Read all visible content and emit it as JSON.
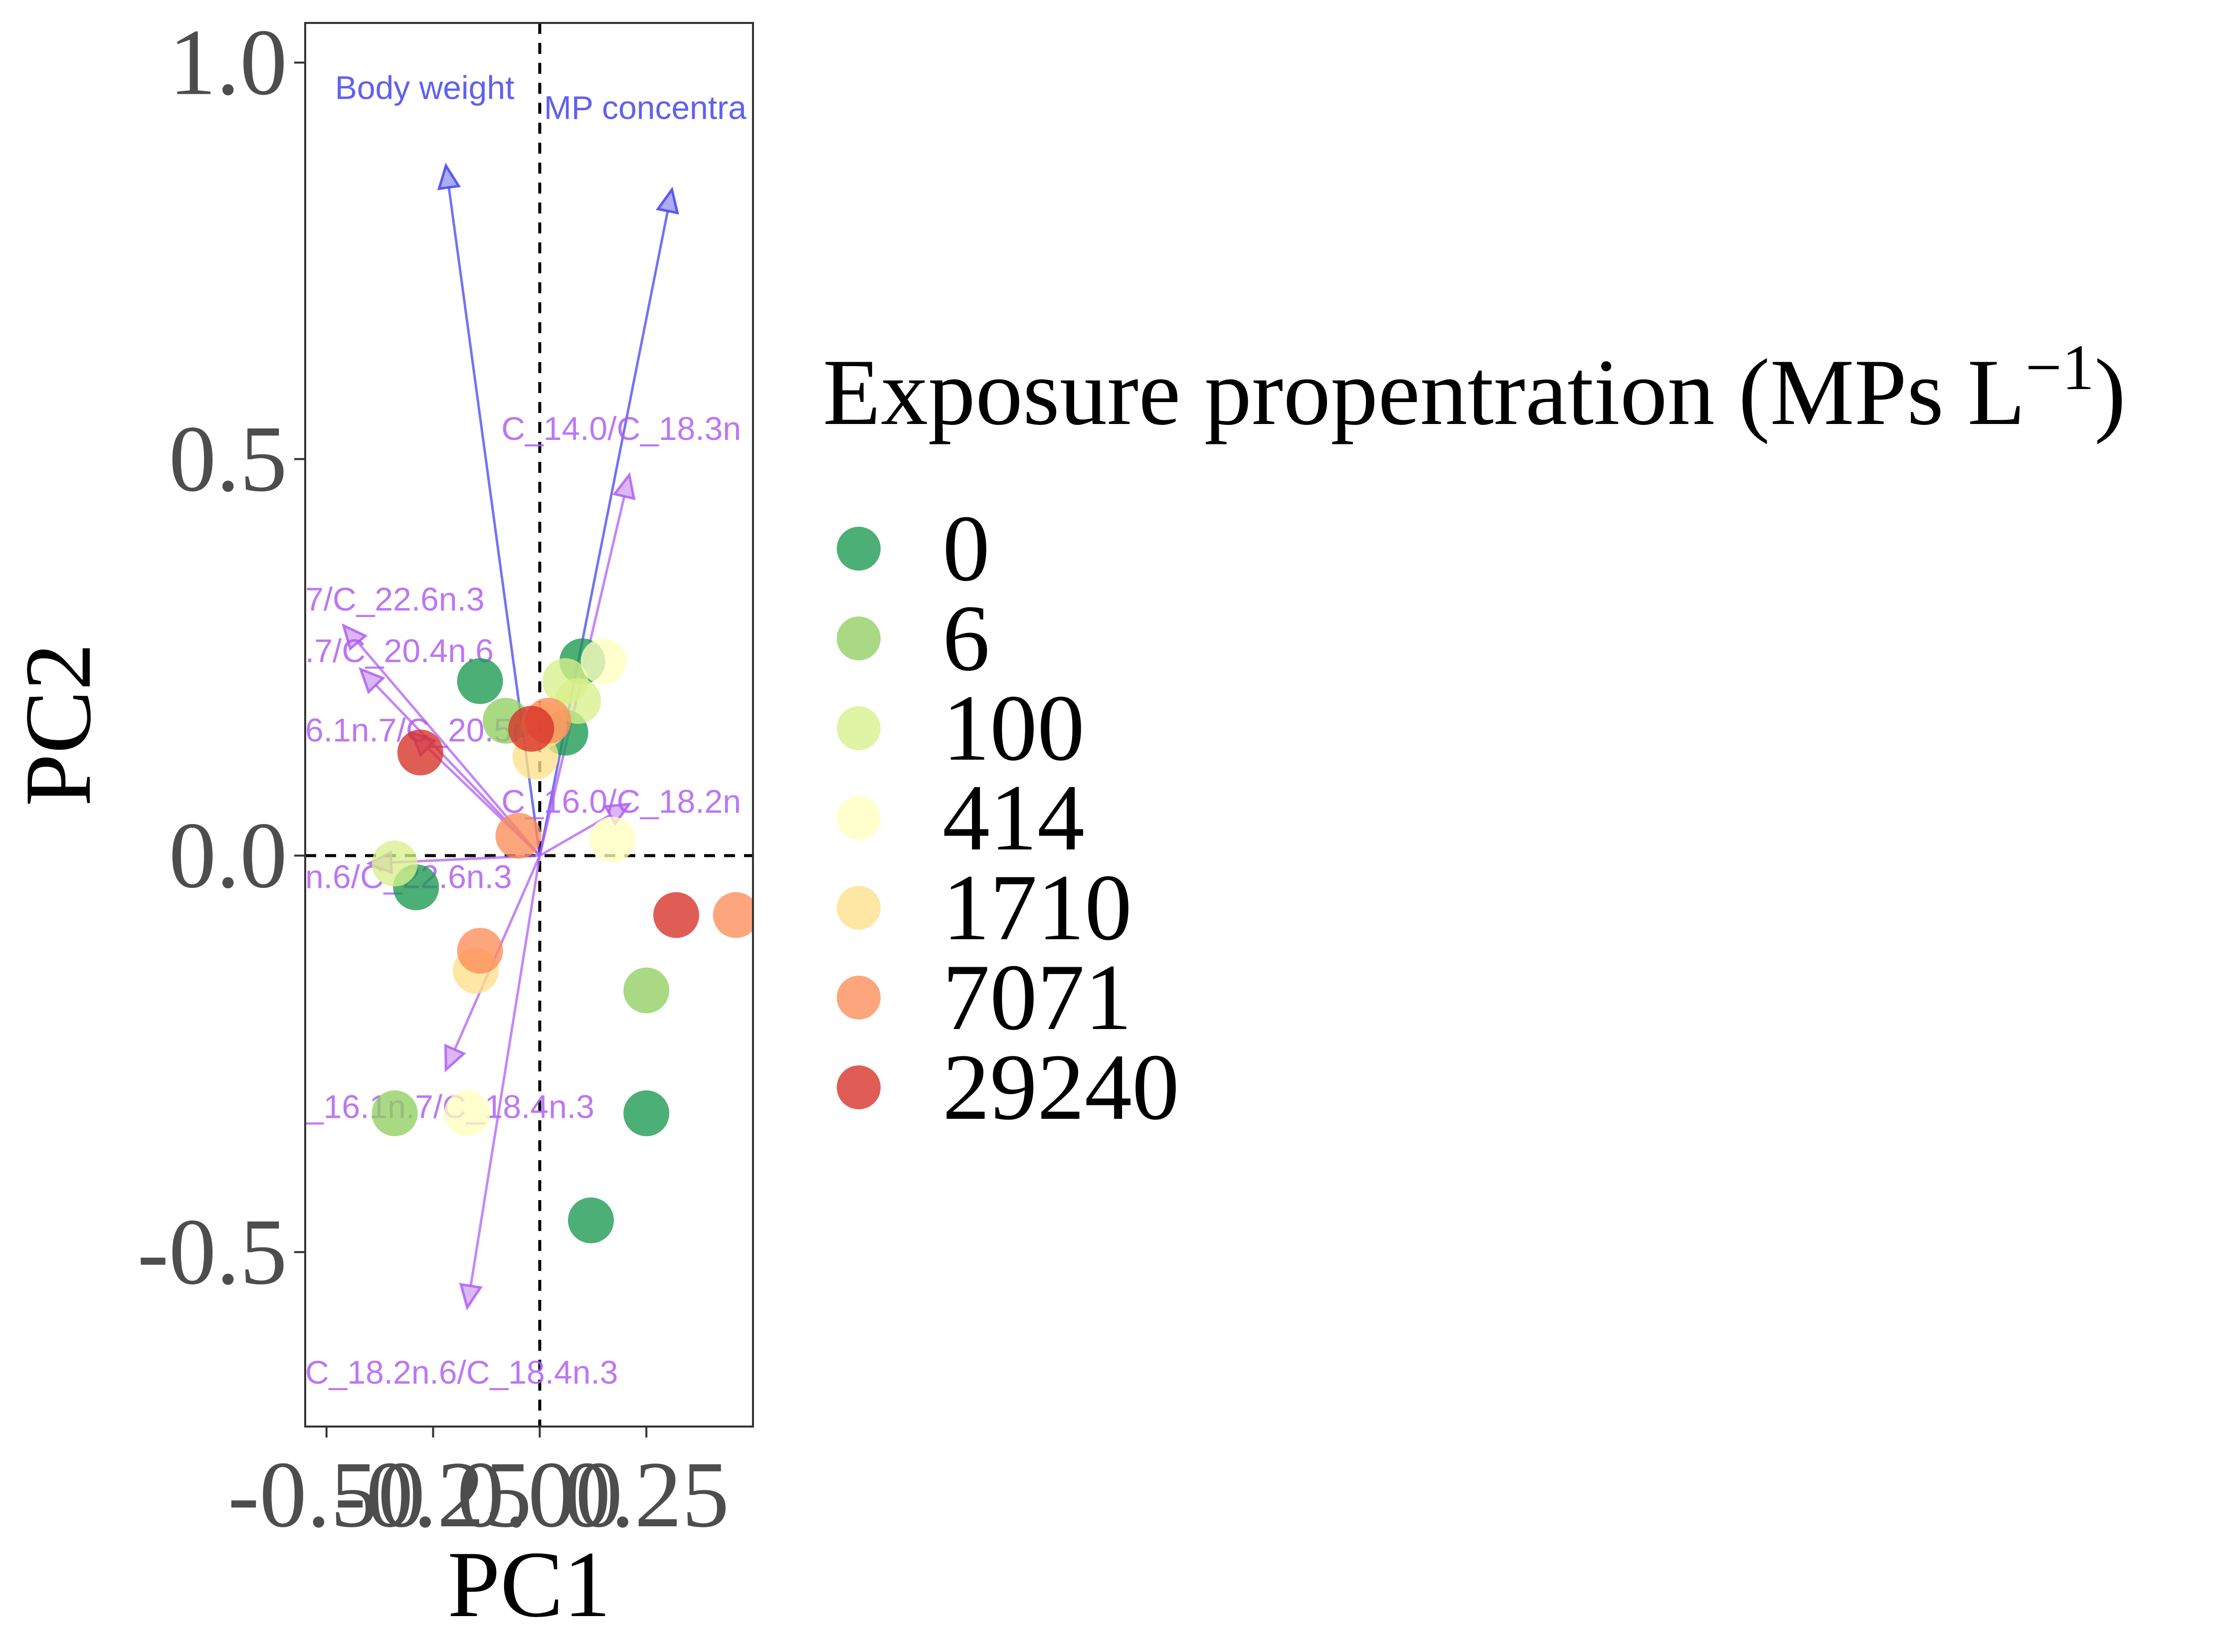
{
  "chart_data": {
    "type": "scatter",
    "xlabel": "PC1",
    "ylabel": "PC2",
    "xlim": [
      -0.55,
      0.5
    ],
    "ylim": [
      -0.72,
      1.05
    ],
    "x_ticks": [
      -0.5,
      -0.25,
      0.0,
      0.25
    ],
    "x_tick_labels": [
      "-0.50",
      "-0.25",
      "0.00",
      "0.25"
    ],
    "y_ticks": [
      -0.5,
      0.0,
      0.5,
      1.0
    ],
    "y_tick_labels": [
      "-0.5",
      "0.0",
      "0.5",
      "1.0"
    ],
    "reference_lines": {
      "x": 0,
      "y": 0,
      "style": "dashed",
      "color": "#000000"
    },
    "legend": {
      "title": "Exposure propentration (MPs L",
      "title_superscript": "−1",
      "title_suffix": ")",
      "placement": "right"
    },
    "series": [
      {
        "name": "0",
        "color": "#1a9850",
        "points": [
          [
            -0.14,
            0.22
          ],
          [
            0.1,
            0.245
          ],
          [
            0.06,
            0.155
          ],
          [
            -0.29,
            -0.04
          ],
          [
            0.25,
            -0.325
          ],
          [
            0.12,
            -0.46
          ]
        ]
      },
      {
        "name": "6",
        "color": "#91cf60",
        "points": [
          [
            -0.08,
            0.17
          ],
          [
            0.25,
            -0.17
          ],
          [
            -0.34,
            -0.325
          ]
        ]
      },
      {
        "name": "100",
        "color": "#d9ef8b",
        "points": [
          [
            0.06,
            0.22
          ],
          [
            0.09,
            0.195
          ],
          [
            -0.34,
            -0.01
          ]
        ]
      },
      {
        "name": "414",
        "color": "#ffffbf",
        "points": [
          [
            0.15,
            0.245
          ],
          [
            0.17,
            0.02
          ],
          [
            -0.17,
            -0.325
          ]
        ]
      },
      {
        "name": "1710",
        "color": "#fee08b",
        "points": [
          [
            0.01,
            0.165
          ],
          [
            -0.01,
            0.125
          ],
          [
            -0.15,
            -0.145
          ]
        ]
      },
      {
        "name": "7071",
        "color": "#fc8d59",
        "points": [
          [
            0.02,
            0.17
          ],
          [
            -0.05,
            0.025
          ],
          [
            -0.14,
            -0.12
          ],
          [
            0.46,
            -0.075
          ]
        ]
      },
      {
        "name": "29240",
        "color": "#d73027",
        "points": [
          [
            -0.28,
            0.13
          ],
          [
            -0.02,
            0.16
          ],
          [
            0.32,
            -0.075
          ]
        ]
      }
    ],
    "vectors": [
      {
        "label": "Body weight",
        "color": "#4444ee",
        "x": -0.22,
        "y": 0.87,
        "label_x": -0.48,
        "label_y": 0.965
      },
      {
        "label": "MP concentra",
        "color": "#4444ee",
        "x": 0.31,
        "y": 0.84,
        "label_x": 0.01,
        "label_y": 0.94
      },
      {
        "label": "C_14.0/C_18.3n",
        "color": "#b05ff0",
        "x": 0.21,
        "y": 0.48,
        "label_x": -0.09,
        "label_y": 0.535
      },
      {
        "label": "7/C_22.6n.3",
        "color": "#b05ff0",
        "x": -0.46,
        "y": 0.29,
        "label_x": -0.55,
        "label_y": 0.32
      },
      {
        "label": ".7/C_20.4n.6",
        "color": "#b05ff0",
        "x": -0.42,
        "y": 0.235,
        "label_x": -0.55,
        "label_y": 0.255
      },
      {
        "label": "6.1n.7/C_20.5n.3",
        "color": "#b05ff0",
        "x": -0.3,
        "y": 0.155,
        "label_x": -0.55,
        "label_y": 0.155
      },
      {
        "label": "C_16.0/C_18.2n",
        "color": "#b05ff0",
        "x": 0.21,
        "y": 0.065,
        "label_x": -0.09,
        "label_y": 0.065
      },
      {
        "label": "n.6/C_22.6n.3",
        "color": "#b05ff0",
        "x": -0.4,
        "y": -0.01,
        "label_x": -0.55,
        "label_y": -0.03
      },
      {
        "label": "_16.1n.7/C_18.4n.3",
        "color": "#b05ff0",
        "x": -0.22,
        "y": -0.27,
        "label_x": -0.55,
        "label_y": -0.32
      },
      {
        "label": "C_18.2n.6/C_18.4n.3",
        "color": "#b05ff0",
        "x": -0.17,
        "y": -0.57,
        "label_x": -0.55,
        "label_y": -0.655
      }
    ]
  }
}
